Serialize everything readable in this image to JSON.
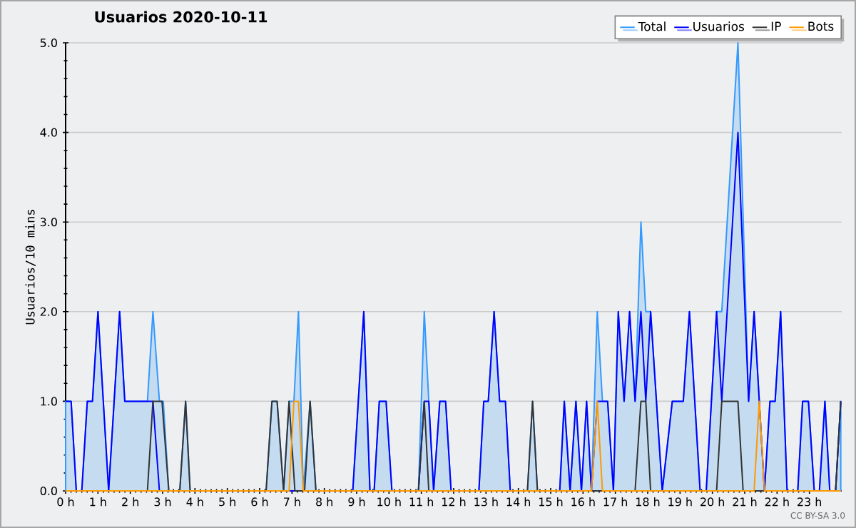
{
  "chart_data": {
    "type": "line",
    "title": "Usuarios  2020-10-11",
    "ylabel": "Usuarios/10 mins",
    "annotations": [
      "CC BY-SA 3.0"
    ],
    "xlim": [
      0,
      24
    ],
    "ylim": [
      0,
      5
    ],
    "xticks": [
      {
        "value": 0,
        "label": "0 h"
      },
      {
        "value": 1,
        "label": "1 h"
      },
      {
        "value": 2,
        "label": "2 h"
      },
      {
        "value": 3,
        "label": "3 h"
      },
      {
        "value": 4,
        "label": "4 h"
      },
      {
        "value": 5,
        "label": "5 h"
      },
      {
        "value": 6,
        "label": "6 h"
      },
      {
        "value": 7,
        "label": "7 h"
      },
      {
        "value": 8,
        "label": "8 h"
      },
      {
        "value": 9,
        "label": "9 h"
      },
      {
        "value": 10,
        "label": "10 h"
      },
      {
        "value": 11,
        "label": "11 h"
      },
      {
        "value": 12,
        "label": "12 h"
      },
      {
        "value": 13,
        "label": "13 h"
      },
      {
        "value": 14,
        "label": "14 h"
      },
      {
        "value": 15,
        "label": "15 h"
      },
      {
        "value": 16,
        "label": "16 h"
      },
      {
        "value": 17,
        "label": "17 h"
      },
      {
        "value": 18,
        "label": "18 h"
      },
      {
        "value": 19,
        "label": "19 h"
      },
      {
        "value": 20,
        "label": "20 h"
      },
      {
        "value": 21,
        "label": "21 h"
      },
      {
        "value": 22,
        "label": "22 h"
      },
      {
        "value": 23,
        "label": "23 h"
      }
    ],
    "yticks": [
      {
        "value": 0,
        "label": "0.0"
      },
      {
        "value": 1,
        "label": "1.0"
      },
      {
        "value": 2,
        "label": "2.0"
      },
      {
        "value": 3,
        "label": "3.0"
      },
      {
        "value": 4,
        "label": "4.0"
      },
      {
        "value": 5,
        "label": "5.0"
      }
    ],
    "grid": "y",
    "legend": "top right",
    "series": [
      {
        "name": "Total",
        "type": "area",
        "color": "#3399ff",
        "x": [
          0,
          0.17,
          0.33,
          0.5,
          0.67,
          0.83,
          1.0,
          1.33,
          1.67,
          1.83,
          2.53,
          2.7,
          2.9,
          3.02,
          3.19,
          3.53,
          3.71,
          3.85,
          6.2,
          6.38,
          6.54,
          6.74,
          6.91,
          7.06,
          7.2,
          7.35,
          7.56,
          7.74,
          8.88,
          9.22,
          9.41,
          9.54,
          9.7,
          9.91,
          10.09,
          10.91,
          11.09,
          11.23,
          11.38,
          11.57,
          11.75,
          11.92,
          12.78,
          12.93,
          13.07,
          13.25,
          13.42,
          13.6,
          13.75,
          14.28,
          14.44,
          14.59,
          15.28,
          15.42,
          15.6,
          15.78,
          15.95,
          16.11,
          16.26,
          16.44,
          16.6,
          16.76,
          16.94,
          17.09,
          17.27,
          17.44,
          17.61,
          17.79,
          17.94,
          18.09,
          18.45,
          18.76,
          19.1,
          19.29,
          19.62,
          19.81,
          20.13,
          20.29,
          20.79,
          21.12,
          21.29,
          21.45,
          21.61,
          21.78,
          21.94,
          22.11,
          22.31,
          22.64,
          22.79,
          22.97,
          23.15,
          23.31,
          23.48,
          23.63,
          23.81,
          23.97
        ],
        "values": [
          1,
          1,
          0,
          0,
          1,
          1,
          2,
          0,
          2,
          1,
          1,
          2,
          1,
          1,
          0,
          0,
          1,
          0,
          0,
          1,
          1,
          0,
          1,
          1,
          2,
          0,
          1,
          0,
          0,
          2,
          0,
          0,
          1,
          1,
          0,
          0,
          2,
          1,
          0,
          1,
          1,
          0,
          0,
          1,
          1,
          2,
          1,
          1,
          0,
          0,
          1,
          0,
          0,
          1,
          0,
          1,
          0,
          1,
          0,
          2,
          1,
          1,
          0,
          2,
          1,
          2,
          1,
          3,
          2,
          2,
          0,
          1,
          1,
          2,
          0,
          0,
          2,
          2,
          5,
          1,
          2,
          1,
          0,
          1,
          1,
          2,
          0,
          0,
          1,
          1,
          0,
          0,
          1,
          0,
          0,
          1
        ]
      },
      {
        "name": "Usuarios",
        "color": "#0000ff",
        "x": [
          0,
          0.17,
          0.33,
          0.5,
          0.67,
          0.83,
          1.0,
          1.33,
          1.67,
          1.83,
          2.7,
          2.9,
          8.88,
          9.22,
          9.41,
          9.54,
          9.7,
          9.91,
          10.09,
          10.91,
          11.09,
          11.23,
          11.38,
          11.57,
          11.75,
          11.92,
          12.78,
          12.93,
          13.07,
          13.25,
          13.42,
          13.6,
          13.75,
          15.28,
          15.42,
          15.6,
          15.78,
          15.95,
          16.11,
          16.26,
          16.44,
          16.76,
          16.94,
          17.09,
          17.27,
          17.44,
          17.61,
          17.79,
          17.94,
          18.09,
          18.45,
          18.76,
          19.1,
          19.29,
          19.62,
          19.81,
          20.13,
          20.29,
          20.79,
          21.12,
          21.29,
          21.61,
          21.78,
          21.94,
          22.11,
          22.31,
          22.64,
          22.79,
          22.97,
          23.15,
          23.31,
          23.48,
          23.63,
          23.81,
          23.97
        ],
        "values": [
          1,
          1,
          0,
          0,
          1,
          1,
          2,
          0,
          2,
          1,
          1,
          0,
          0,
          2,
          0,
          0,
          1,
          1,
          0,
          0,
          1,
          1,
          0,
          1,
          1,
          0,
          0,
          1,
          1,
          2,
          1,
          1,
          0,
          0,
          1,
          0,
          1,
          0,
          1,
          0,
          1,
          1,
          0,
          2,
          1,
          2,
          1,
          2,
          1,
          2,
          0,
          1,
          1,
          2,
          0,
          0,
          2,
          1,
          4,
          1,
          2,
          0,
          1,
          1,
          2,
          0,
          0,
          1,
          1,
          0,
          0,
          1,
          0,
          0,
          1
        ]
      },
      {
        "name": "IP",
        "color": "#333333",
        "x": [
          0,
          2.53,
          2.7,
          2.98,
          3.19,
          3.53,
          3.71,
          3.85,
          6.2,
          6.38,
          6.54,
          6.74,
          6.91,
          7.09,
          7.39,
          7.56,
          7.74,
          10.91,
          11.09,
          11.23,
          14.28,
          14.44,
          14.59,
          17.61,
          17.79,
          17.94,
          18.09,
          20.13,
          20.29,
          20.79,
          20.95,
          23.81,
          23.97
        ],
        "values": [
          0,
          0,
          1,
          1,
          0,
          0,
          1,
          0,
          0,
          1,
          1,
          0,
          1,
          0,
          0,
          1,
          0,
          0,
          1,
          0,
          0,
          1,
          0,
          0,
          1,
          1,
          0,
          0,
          1,
          1,
          0,
          0,
          1
        ]
      },
      {
        "name": "Bots",
        "color": "#ff9900",
        "x": [
          0,
          6.91,
          7.06,
          7.2,
          7.35,
          16.26,
          16.44,
          16.6,
          21.29,
          21.45,
          21.61,
          23.97
        ],
        "values": [
          0,
          0,
          1,
          1,
          0,
          0,
          1,
          0,
          0,
          1,
          0,
          0
        ]
      }
    ]
  }
}
